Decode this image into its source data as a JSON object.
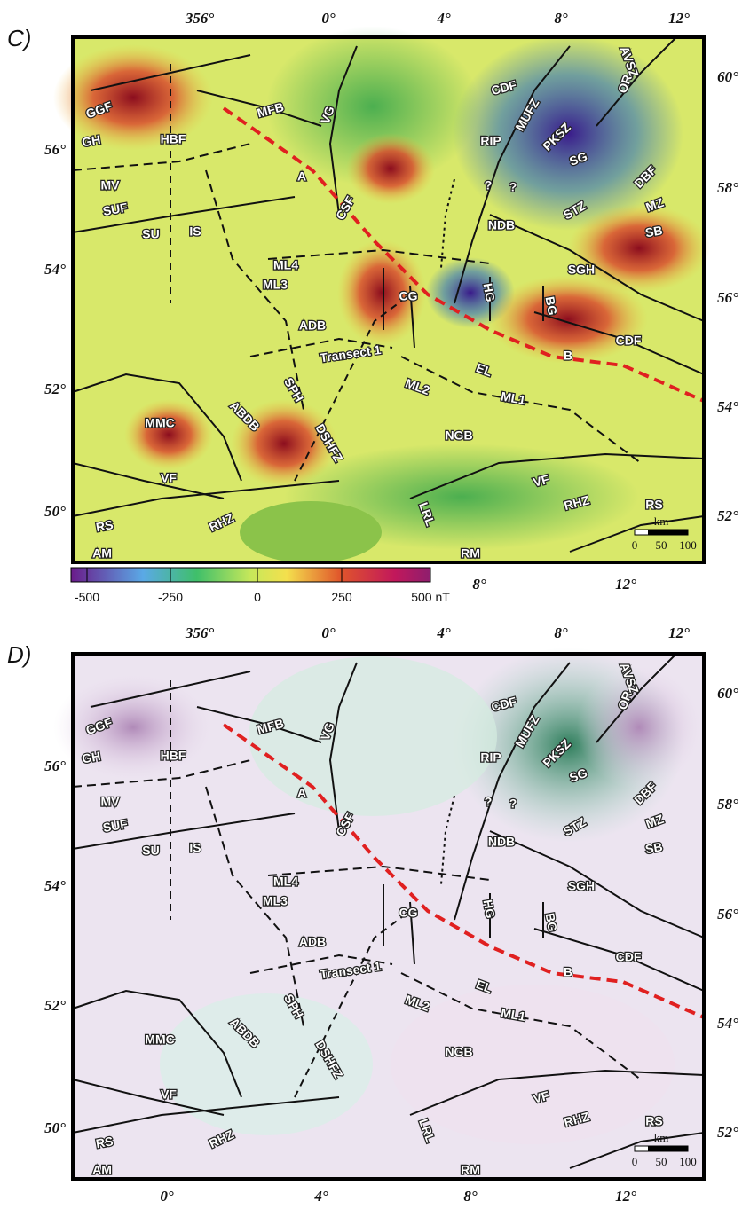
{
  "panels": [
    {
      "label": "C)",
      "top_axis": [
        "356°",
        "0°",
        "4°",
        "8°",
        "12°"
      ],
      "right_axis": [
        "60°",
        "58°",
        "56°",
        "54°",
        "52°"
      ],
      "left_axis": [
        "56°",
        "54°",
        "52°",
        "50°"
      ],
      "bottom_axis": [
        "8°",
        "12°"
      ],
      "features": [
        "GGF",
        "GH",
        "HBF",
        "MFB",
        "VG",
        "MV",
        "SUF",
        "SU",
        "IS",
        "A",
        "CSF",
        "CDF",
        "MUFZ",
        "RIP",
        "PKSZ",
        "SG",
        "AVSZ",
        "OR",
        "DBF",
        "?",
        "?",
        "NDB",
        "STZ",
        "MZ",
        "SB",
        "ML4",
        "ML3",
        "CG",
        "HG",
        "BG",
        "SGH",
        "ADB",
        "CDF",
        "Transect 1",
        "B",
        "EL",
        "SPH",
        "ML2",
        "ML1",
        "ABDB",
        "MMC",
        "DSHFZ",
        "NGB",
        "VF",
        "VF",
        "RS",
        "RHZ",
        "LRL",
        "RHZ",
        "RS",
        "AM",
        "RM"
      ],
      "scalebar": {
        "title": "km",
        "ticks": [
          "0",
          "50",
          "100"
        ]
      }
    },
    {
      "label": "D)",
      "top_axis": [
        "356°",
        "0°",
        "4°",
        "8°",
        "12°"
      ],
      "right_axis": [
        "60°",
        "58°",
        "56°",
        "54°",
        "52°"
      ],
      "left_axis": [
        "56°",
        "54°",
        "52°",
        "50°"
      ],
      "bottom_axis": [
        "0°",
        "4°",
        "8°",
        "12°"
      ],
      "features": [
        "GGF",
        "GH",
        "HBF",
        "MFB",
        "VG",
        "MV",
        "SUF",
        "SU",
        "IS",
        "A",
        "CSF",
        "CDF",
        "MUFZ",
        "RIP",
        "PKSZ",
        "SG",
        "AVSZ",
        "OR",
        "DBF",
        "?",
        "?",
        "NDB",
        "STZ",
        "MZ",
        "SB",
        "ML4",
        "ML3",
        "CG",
        "HG",
        "BG",
        "SGH",
        "ADB",
        "CDF",
        "Transect 1",
        "B",
        "EL",
        "SPH",
        "ML2",
        "ML1",
        "ABDB",
        "MMC",
        "DSHFZ",
        "NGB",
        "VF",
        "VF",
        "RS",
        "RHZ",
        "LRL",
        "RHZ",
        "RS",
        "AM",
        "RM"
      ],
      "scalebar": {
        "title": "km",
        "ticks": [
          "0",
          "50",
          "100"
        ]
      }
    }
  ],
  "colorbar": {
    "ticks": [
      "-500",
      "-250",
      "0",
      "250",
      "500 nT"
    ]
  }
}
